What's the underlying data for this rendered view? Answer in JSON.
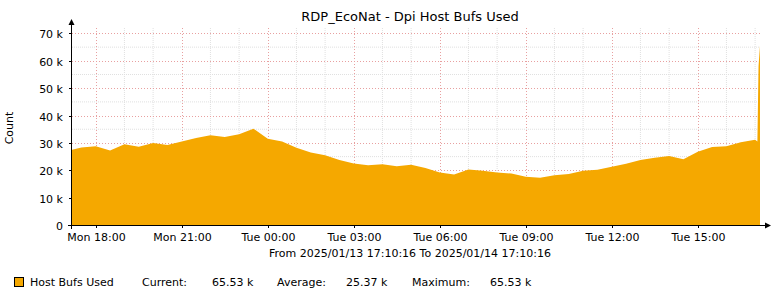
{
  "chart_data": {
    "type": "area",
    "title": "RDP_EcoNat - Dpi Host Bufs Used",
    "y_label": "Count",
    "subtitle": "From 2025/01/13 17:10:16 To 2025/01/14 17:10:16",
    "x": [
      17.171,
      17.5,
      18,
      18.5,
      19,
      19.5,
      20,
      20.5,
      21,
      21.5,
      22,
      22.5,
      23,
      23.5,
      24,
      24.5,
      25,
      25.5,
      26,
      26.5,
      27,
      27.5,
      28,
      28.5,
      29,
      29.5,
      30,
      30.5,
      31,
      31.5,
      32,
      32.5,
      33,
      33.5,
      34,
      34.5,
      35,
      35.5,
      36,
      36.5,
      37,
      37.5,
      38,
      38.5,
      39,
      39.5,
      40,
      40.5,
      41,
      41.08,
      41.12,
      41.171
    ],
    "series": [
      {
        "name": "Host Bufs Used",
        "color": "#f5a800",
        "values": [
          27500,
          28300,
          28800,
          27200,
          29500,
          28600,
          30000,
          29200,
          30500,
          31800,
          32800,
          32200,
          33200,
          35200,
          31500,
          30500,
          28200,
          26500,
          25500,
          23800,
          22500,
          21800,
          22200,
          21500,
          22000,
          20800,
          19200,
          18500,
          20300,
          19800,
          19200,
          18800,
          17600,
          17300,
          18200,
          18600,
          19800,
          20200,
          21300,
          22400,
          23800,
          24600,
          25200,
          24000,
          26800,
          28500,
          28800,
          30200,
          31200,
          30500,
          58000,
          65530
        ]
      }
    ],
    "stats": [
      {
        "label": "Current:",
        "value": "65.53 k"
      },
      {
        "label": "Average:",
        "value": "25.37 k"
      },
      {
        "label": "Maximum:",
        "value": "65.53 k"
      }
    ],
    "xlim": [
      17.171,
      41.171
    ],
    "xticks": [
      {
        "value": 18,
        "label": "Mon 18:00"
      },
      {
        "value": 21,
        "label": "Mon 21:00"
      },
      {
        "value": 24,
        "label": "Tue 00:00"
      },
      {
        "value": 27,
        "label": "Tue 03:00"
      },
      {
        "value": 30,
        "label": "Tue 06:00"
      },
      {
        "value": 33,
        "label": "Tue 09:00"
      },
      {
        "value": 36,
        "label": "Tue 12:00"
      },
      {
        "value": 39,
        "label": "Tue 15:00"
      }
    ],
    "ylim": [
      0,
      72000
    ],
    "yticks": [
      0,
      {
        "value": 10000,
        "label": "10 k"
      },
      {
        "value": 20000,
        "label": "20 k"
      },
      {
        "value": 30000,
        "label": "30 k"
      },
      {
        "value": 40000,
        "label": "40 k"
      },
      {
        "value": 50000,
        "label": "50 k"
      },
      {
        "value": 60000,
        "label": "60 k"
      },
      {
        "value": 70000,
        "label": "70 k"
      }
    ],
    "grid": true
  }
}
